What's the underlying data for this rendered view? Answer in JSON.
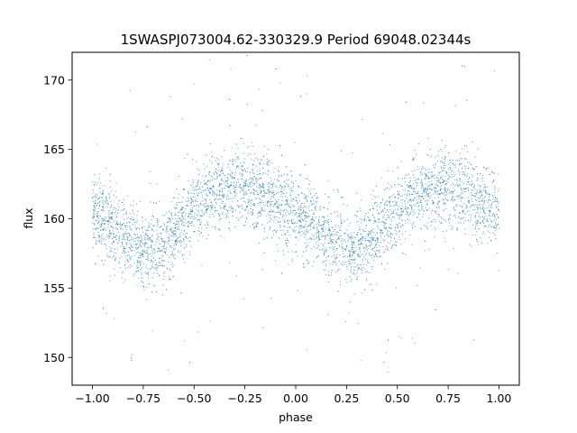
{
  "chart_data": {
    "type": "scatter",
    "title": "1SWASPJ073004.62-330329.9 Period 69048.02344s",
    "xlabel": "phase",
    "ylabel": "flux",
    "xlim": [
      -1.1,
      1.1
    ],
    "ylim": [
      148,
      172
    ],
    "xticks": [
      -1.0,
      -0.75,
      -0.5,
      -0.25,
      0.0,
      0.25,
      0.5,
      0.75,
      1.0
    ],
    "xtick_labels": [
      "−1.00",
      "−0.75",
      "−0.50",
      "−0.25",
      "0.00",
      "0.25",
      "0.50",
      "0.75",
      "1.00"
    ],
    "yticks": [
      150,
      155,
      160,
      165,
      170
    ],
    "ytick_labels": [
      "150",
      "155",
      "160",
      "165",
      "170"
    ],
    "grid": false,
    "legend": "none",
    "marker_color": "#1f77b4",
    "series": [
      {
        "phase": [
          -1.0,
          -0.95,
          -0.9,
          -0.85,
          -0.8,
          -0.75,
          -0.7,
          -0.65,
          -0.6,
          -0.55,
          -0.5,
          -0.45,
          -0.4,
          -0.35,
          -0.3,
          -0.25,
          -0.2,
          -0.15,
          -0.1,
          -0.05,
          0.0,
          0.05,
          0.1,
          0.15,
          0.2,
          0.25,
          0.3,
          0.35,
          0.4,
          0.45,
          0.5,
          0.55,
          0.6,
          0.65,
          0.7,
          0.75,
          0.8,
          0.85,
          0.9,
          0.95,
          1.0
        ],
        "mean_flux": [
          160.5,
          160.0,
          159.3,
          158.6,
          158.2,
          157.9,
          157.8,
          158.2,
          159.0,
          159.8,
          160.6,
          161.3,
          161.8,
          162.0,
          162.2,
          162.3,
          162.1,
          161.7,
          161.2,
          160.7,
          160.4,
          160.0,
          159.3,
          158.6,
          158.2,
          157.9,
          157.8,
          158.2,
          159.0,
          159.8,
          160.6,
          161.3,
          161.8,
          162.0,
          162.2,
          162.3,
          162.1,
          161.7,
          161.2,
          160.7,
          160.4
        ],
        "scatter_spread": 1.4,
        "point_count": 5000
      }
    ]
  }
}
